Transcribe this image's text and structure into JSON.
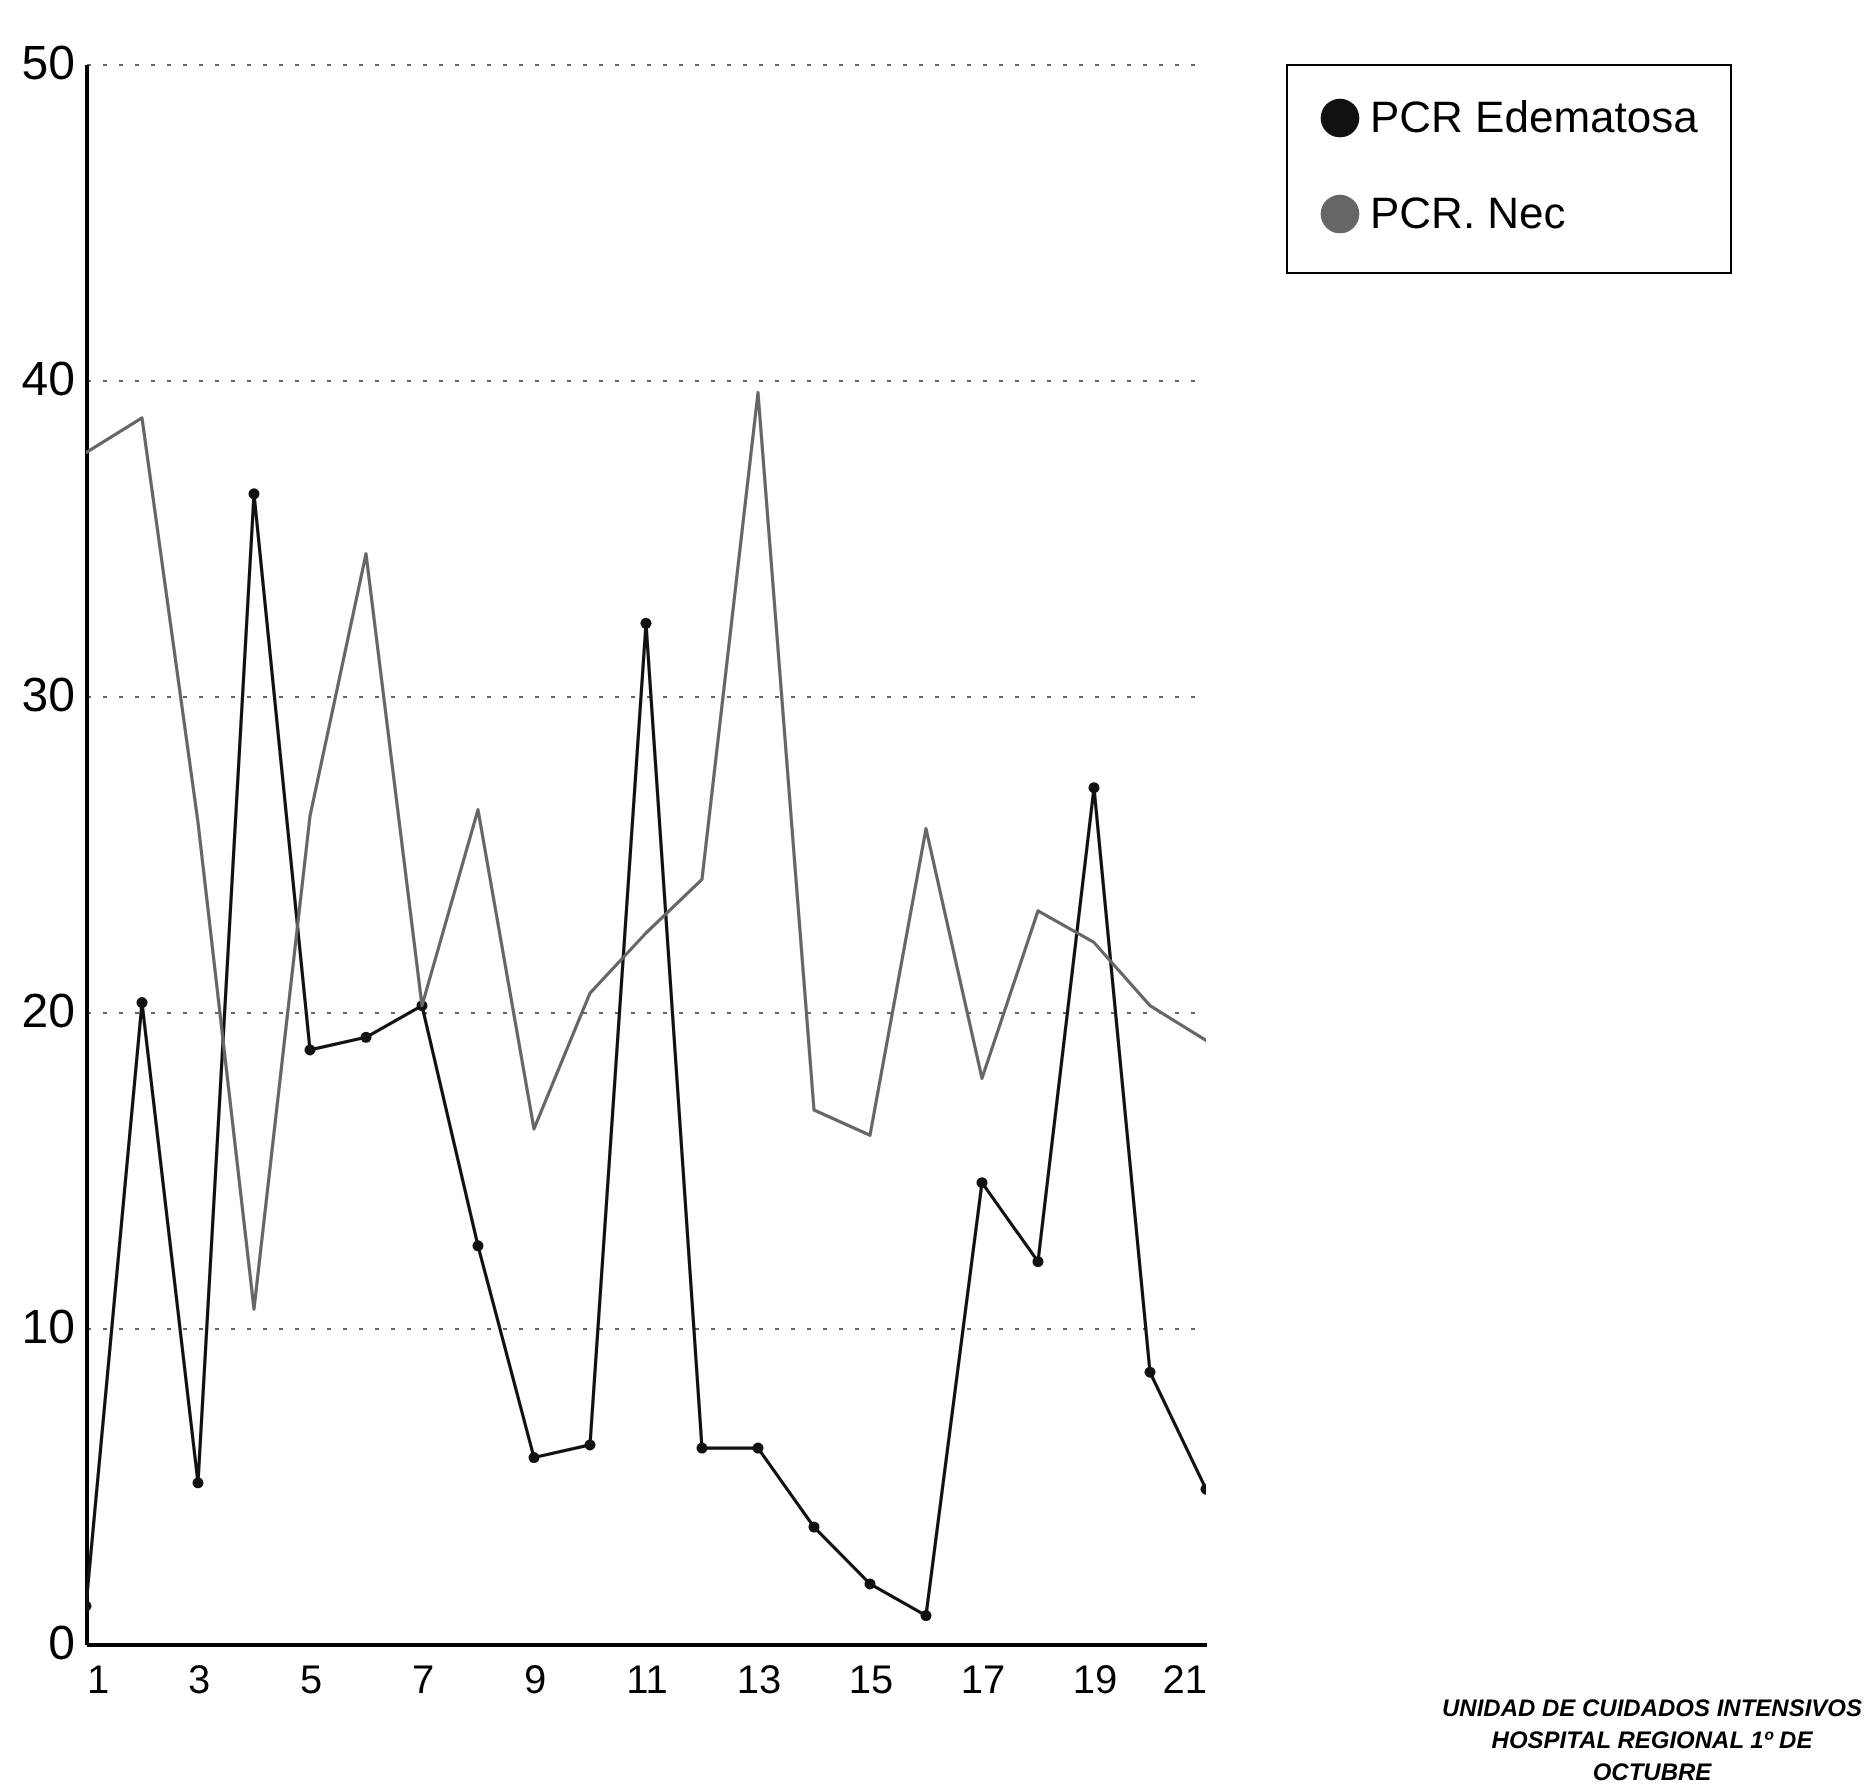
{
  "chart_data": {
    "type": "line",
    "x": [
      1,
      2,
      3,
      4,
      5,
      6,
      7,
      8,
      9,
      10,
      11,
      12,
      13,
      14,
      15,
      16,
      17,
      18,
      19,
      20,
      21
    ],
    "series": [
      {
        "name": "PCR Edematosa",
        "color": "#111111",
        "marker": "circle",
        "values": [
          1.2,
          20.3,
          5.1,
          36.4,
          18.8,
          19.2,
          20.2,
          12.6,
          5.9,
          6.3,
          32.3,
          6.2,
          6.2,
          3.7,
          1.9,
          0.9,
          14.6,
          12.1,
          27.1,
          8.6,
          4.9
        ]
      },
      {
        "name": "PCR. Nec",
        "color": "#666666",
        "marker": "none",
        "values": [
          37.7,
          38.8,
          26,
          10.6,
          26.2,
          34.5,
          20.2,
          26.4,
          16.3,
          20.6,
          22.5,
          24.2,
          39.6,
          16.9,
          16.1,
          25.8,
          17.9,
          23.2,
          22.2,
          20.2,
          19.1
        ]
      }
    ],
    "xlim": [
      1,
      21
    ],
    "xticks": [
      1,
      3,
      5,
      7,
      9,
      11,
      13,
      15,
      17,
      19,
      21
    ],
    "ylim": [
      0,
      50
    ],
    "yticks": [
      0,
      10,
      20,
      30,
      40,
      50
    ],
    "grid": "y",
    "legend": "right",
    "annotations": [
      "UNIDAD DE CUIDADOS INTENSIVOS",
      "HOSPITAL REGIONAL 1º DE OCTUBRE"
    ]
  }
}
